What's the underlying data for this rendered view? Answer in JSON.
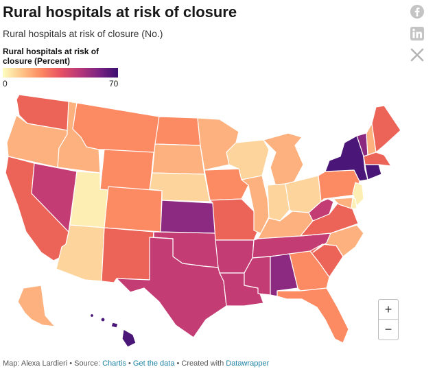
{
  "header": {
    "title": "Rural hospitals at risk of closure",
    "subtitle": "Rural hospitals at risk of closure (No.)"
  },
  "share": {
    "icons": [
      "facebook-icon",
      "linkedin-icon",
      "x-icon"
    ]
  },
  "legend": {
    "title": "Rural hospitals at risk of closure (Percent)",
    "min": "0",
    "max": "70"
  },
  "map": {
    "colors": {
      "v1": "#fdeeb3",
      "v2": "#fdd49c",
      "v3": "#fdb17f",
      "v4": "#fc8a62",
      "v5": "#ec6358",
      "v6": "#c43c74",
      "v7": "#8c2981",
      "v8": "#4a1677"
    },
    "states": [
      {
        "id": "WA",
        "level": "v5"
      },
      {
        "id": "OR",
        "level": "v3"
      },
      {
        "id": "CA",
        "level": "v5"
      },
      {
        "id": "ID",
        "level": "v3"
      },
      {
        "id": "NV",
        "level": "v6"
      },
      {
        "id": "UT",
        "level": "v1"
      },
      {
        "id": "AZ",
        "level": "v2"
      },
      {
        "id": "MT",
        "level": "v4"
      },
      {
        "id": "WY",
        "level": "v4"
      },
      {
        "id": "CO",
        "level": "v4"
      },
      {
        "id": "NM",
        "level": "v5"
      },
      {
        "id": "ND",
        "level": "v4"
      },
      {
        "id": "SD",
        "level": "v3"
      },
      {
        "id": "NE",
        "level": "v2"
      },
      {
        "id": "KS",
        "level": "v7"
      },
      {
        "id": "OK",
        "level": "v6"
      },
      {
        "id": "TX",
        "level": "v6"
      },
      {
        "id": "MN",
        "level": "v3"
      },
      {
        "id": "IA",
        "level": "v4"
      },
      {
        "id": "MO",
        "level": "v5"
      },
      {
        "id": "AR",
        "level": "v6"
      },
      {
        "id": "LA",
        "level": "v6"
      },
      {
        "id": "WI",
        "level": "v2"
      },
      {
        "id": "IL",
        "level": "v3"
      },
      {
        "id": "MI",
        "level": "v3"
      },
      {
        "id": "IN",
        "level": "v2"
      },
      {
        "id": "OH",
        "level": "v2"
      },
      {
        "id": "KY",
        "level": "v3"
      },
      {
        "id": "TN",
        "level": "v6"
      },
      {
        "id": "MS",
        "level": "v6"
      },
      {
        "id": "AL",
        "level": "v7"
      },
      {
        "id": "GA",
        "level": "v4"
      },
      {
        "id": "FL",
        "level": "v4"
      },
      {
        "id": "SC",
        "level": "v5"
      },
      {
        "id": "NC",
        "level": "v3"
      },
      {
        "id": "VA",
        "level": "v5"
      },
      {
        "id": "WV",
        "level": "v6"
      },
      {
        "id": "PA",
        "level": "v4"
      },
      {
        "id": "NY",
        "level": "v8"
      },
      {
        "id": "VT",
        "level": "v7"
      },
      {
        "id": "NH",
        "level": "v3"
      },
      {
        "id": "ME",
        "level": "v5"
      },
      {
        "id": "MA",
        "level": "v5"
      },
      {
        "id": "CT",
        "level": "v8"
      },
      {
        "id": "NJ",
        "level": "v1"
      },
      {
        "id": "DE",
        "level": "v1"
      },
      {
        "id": "MD",
        "level": "v3"
      },
      {
        "id": "AK",
        "level": "v3"
      },
      {
        "id": "HI",
        "level": "v8"
      }
    ]
  },
  "zoom": {
    "in_label": "+",
    "out_label": "−"
  },
  "footer": {
    "credit": "Map: Alexa Lardieri",
    "source_prefix": " • Source: ",
    "source_name": "Chartis",
    "separator": " • ",
    "get_data": "Get the data",
    "created_prefix": " • Created with ",
    "tool": "Datawrapper"
  }
}
